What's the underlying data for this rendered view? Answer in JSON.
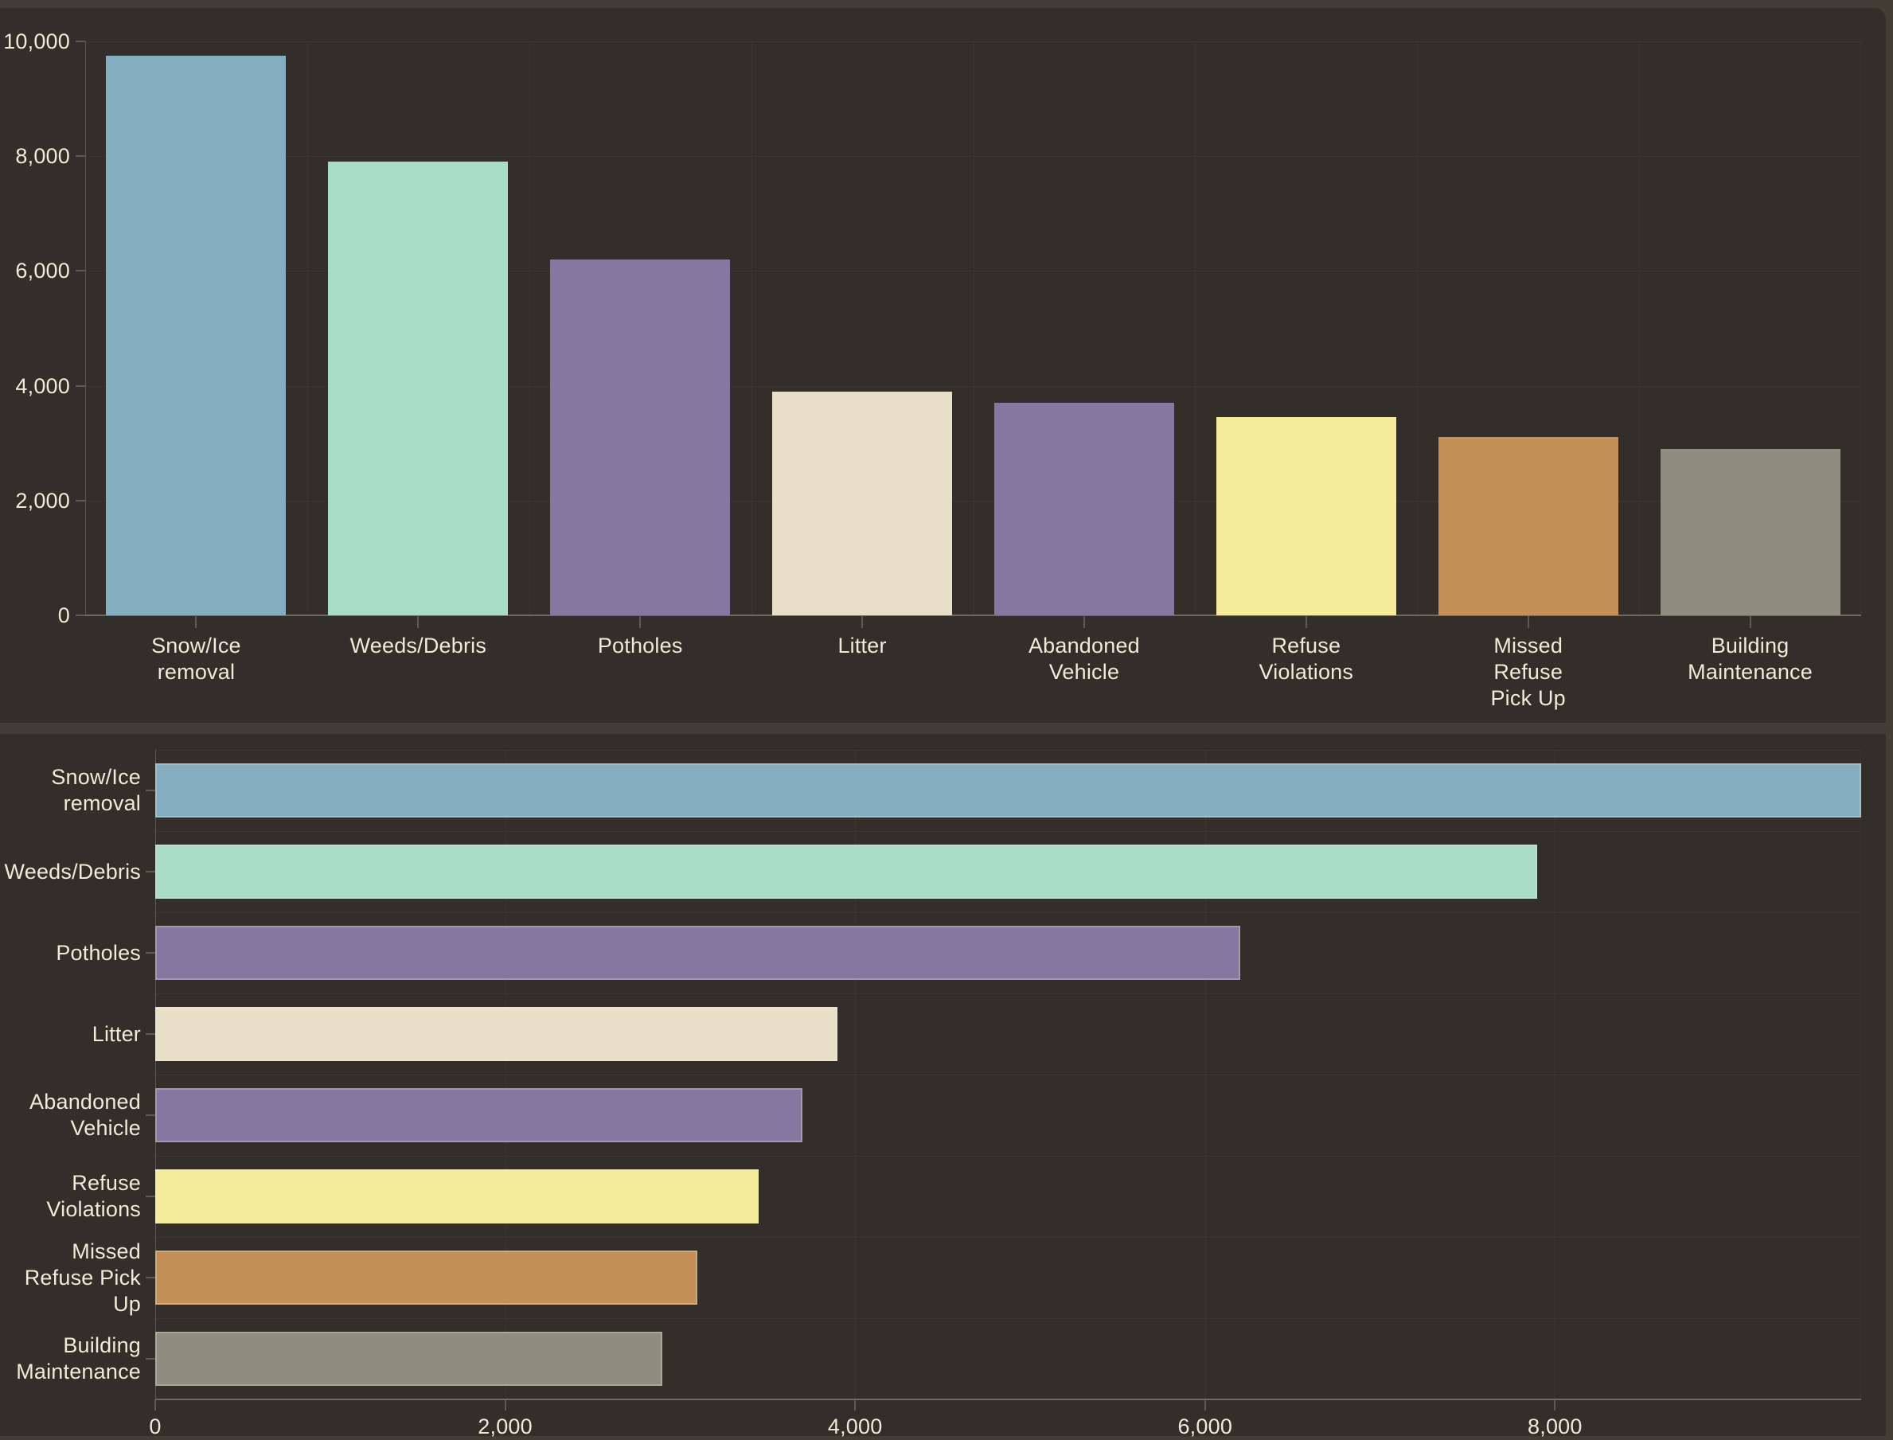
{
  "colors": {
    "outer_frame": "#443d35",
    "panel_background": "#332e29",
    "grid_line": "#3c3730",
    "axis_line": "#6e685e",
    "tick_mark": "#5f594e",
    "label_text": "#f2e9d6"
  },
  "chart_data": [
    {
      "type": "bar",
      "orientation": "vertical",
      "title": "",
      "xlabel": "",
      "ylabel": "",
      "grid": true,
      "legend": false,
      "categories": [
        "Snow/Ice removal",
        "Weeds/Debris",
        "Potholes",
        "Litter",
        "Abandoned Vehicle",
        "Refuse Violations",
        "Missed Refuse Pick Up",
        "Building Maintenance"
      ],
      "category_label_lines": [
        [
          "Snow/Ice",
          "removal"
        ],
        [
          "Weeds/Debris"
        ],
        [
          "Potholes"
        ],
        [
          "Litter"
        ],
        [
          "Abandoned",
          "Vehicle"
        ],
        [
          "Refuse",
          "Violations"
        ],
        [
          "Missed",
          "Refuse",
          "Pick Up"
        ],
        [
          "Building",
          "Maintenance"
        ]
      ],
      "values": [
        9750,
        7900,
        6200,
        3900,
        3700,
        3450,
        3100,
        2900
      ],
      "bar_colors": [
        "#84aec0",
        "#a8dcc3",
        "#8478a1",
        "#e9dfc9",
        "#8478a1",
        "#f4ec9a",
        "#c39157",
        "#8e8e80"
      ],
      "ylim": [
        0,
        10000
      ],
      "yticks": [
        0,
        2000,
        4000,
        6000,
        8000,
        10000
      ],
      "ytick_labels": [
        "0",
        "2,000",
        "4,000",
        "6,000",
        "8,000",
        "10,000"
      ]
    },
    {
      "type": "bar",
      "orientation": "horizontal",
      "title": "",
      "xlabel": "",
      "ylabel": "",
      "grid": true,
      "legend": false,
      "categories": [
        "Snow/Ice removal",
        "Weeds/Debris",
        "Potholes",
        "Litter",
        "Abandoned Vehicle",
        "Refuse Violations",
        "Missed Refuse Pick Up",
        "Building Maintenance"
      ],
      "category_label_lines": [
        [
          "Snow/Ice",
          "removal"
        ],
        [
          "Weeds/Debris"
        ],
        [
          "Potholes"
        ],
        [
          "Litter"
        ],
        [
          "Abandoned",
          "Vehicle"
        ],
        [
          "Refuse",
          "Violations"
        ],
        [
          "Missed",
          "Refuse Pick",
          "Up"
        ],
        [
          "Building",
          "Maintenance"
        ]
      ],
      "values": [
        9750,
        7900,
        6200,
        3900,
        3700,
        3450,
        3100,
        2900
      ],
      "bar_colors": [
        "#84aec0",
        "#a8dcc3",
        "#8478a1",
        "#e9dfc9",
        "#8478a1",
        "#f4ec9a",
        "#c39157",
        "#8e8e80"
      ],
      "xlim": [
        0,
        9750
      ],
      "xticks": [
        0,
        2000,
        4000,
        6000,
        8000
      ],
      "xtick_labels": [
        "0",
        "2,000",
        "4,000",
        "6,000",
        "8,000"
      ]
    }
  ]
}
